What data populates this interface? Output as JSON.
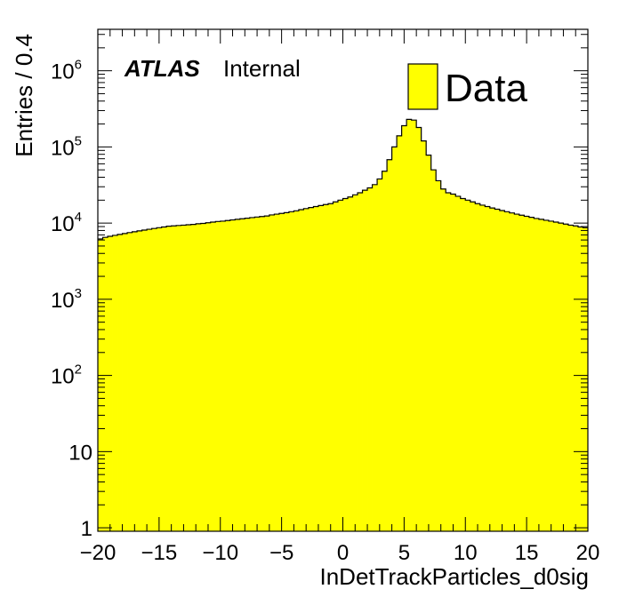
{
  "chart_data": {
    "type": "bar",
    "histogram": true,
    "xlabel": "InDetTrackParticles_d0sig",
    "ylabel": "Entries / 0.4",
    "xlim": [
      -20,
      20
    ],
    "ylim": [
      0.9,
      3500000
    ],
    "ylog": true,
    "bin_width": 0.4,
    "bin_start": -20,
    "series": [
      {
        "name": "Data",
        "color": "#ffff00",
        "values": [
          6200,
          6500,
          6700,
          6900,
          7100,
          7300,
          7500,
          7700,
          7900,
          8100,
          8300,
          8500,
          8700,
          8900,
          9100,
          9200,
          9300,
          9400,
          9500,
          9600,
          9800,
          9900,
          10100,
          10300,
          10500,
          10600,
          10800,
          11000,
          11200,
          11400,
          11600,
          11800,
          12000,
          12200,
          12400,
          12800,
          13100,
          13400,
          13700,
          14100,
          14500,
          15000,
          15500,
          16000,
          16500,
          17000,
          17500,
          18000,
          19000,
          20000,
          21000,
          22000,
          23500,
          25000,
          27000,
          29000,
          32000,
          38000,
          48000,
          68000,
          100000,
          140000,
          190000,
          230000,
          225000,
          180000,
          120000,
          78000,
          50000,
          36000,
          28000,
          25000,
          24000,
          22500,
          21000,
          20000,
          19000,
          18000,
          17200,
          16500,
          15800,
          15200,
          14600,
          14100,
          13600,
          13100,
          12700,
          12300,
          11900,
          11500,
          11200,
          10900,
          10600,
          10300,
          10000,
          9700,
          9400,
          9200,
          8900,
          8700
        ]
      }
    ],
    "xticks": [
      "−20",
      "−15",
      "−10",
      "−5",
      "0",
      "5",
      "10",
      "15",
      "20"
    ],
    "xtick_values": [
      -20,
      -15,
      -10,
      -5,
      0,
      5,
      10,
      15,
      20
    ],
    "yticks": [
      {
        "value": 1,
        "base": "1",
        "exp": ""
      },
      {
        "value": 10,
        "base": "10",
        "exp": ""
      },
      {
        "value": 100,
        "base": "10",
        "exp": "2"
      },
      {
        "value": 1000,
        "base": "10",
        "exp": "3"
      },
      {
        "value": 10000,
        "base": "10",
        "exp": "4"
      },
      {
        "value": 100000,
        "base": "10",
        "exp": "5"
      },
      {
        "value": 1000000,
        "base": "10",
        "exp": "6"
      }
    ],
    "annotations": {
      "experiment": "ATLAS",
      "status": "Internal"
    },
    "legend": {
      "placement": "top-right",
      "entries": [
        {
          "label": "Data",
          "color": "#ffff00"
        }
      ]
    },
    "grid": false
  }
}
